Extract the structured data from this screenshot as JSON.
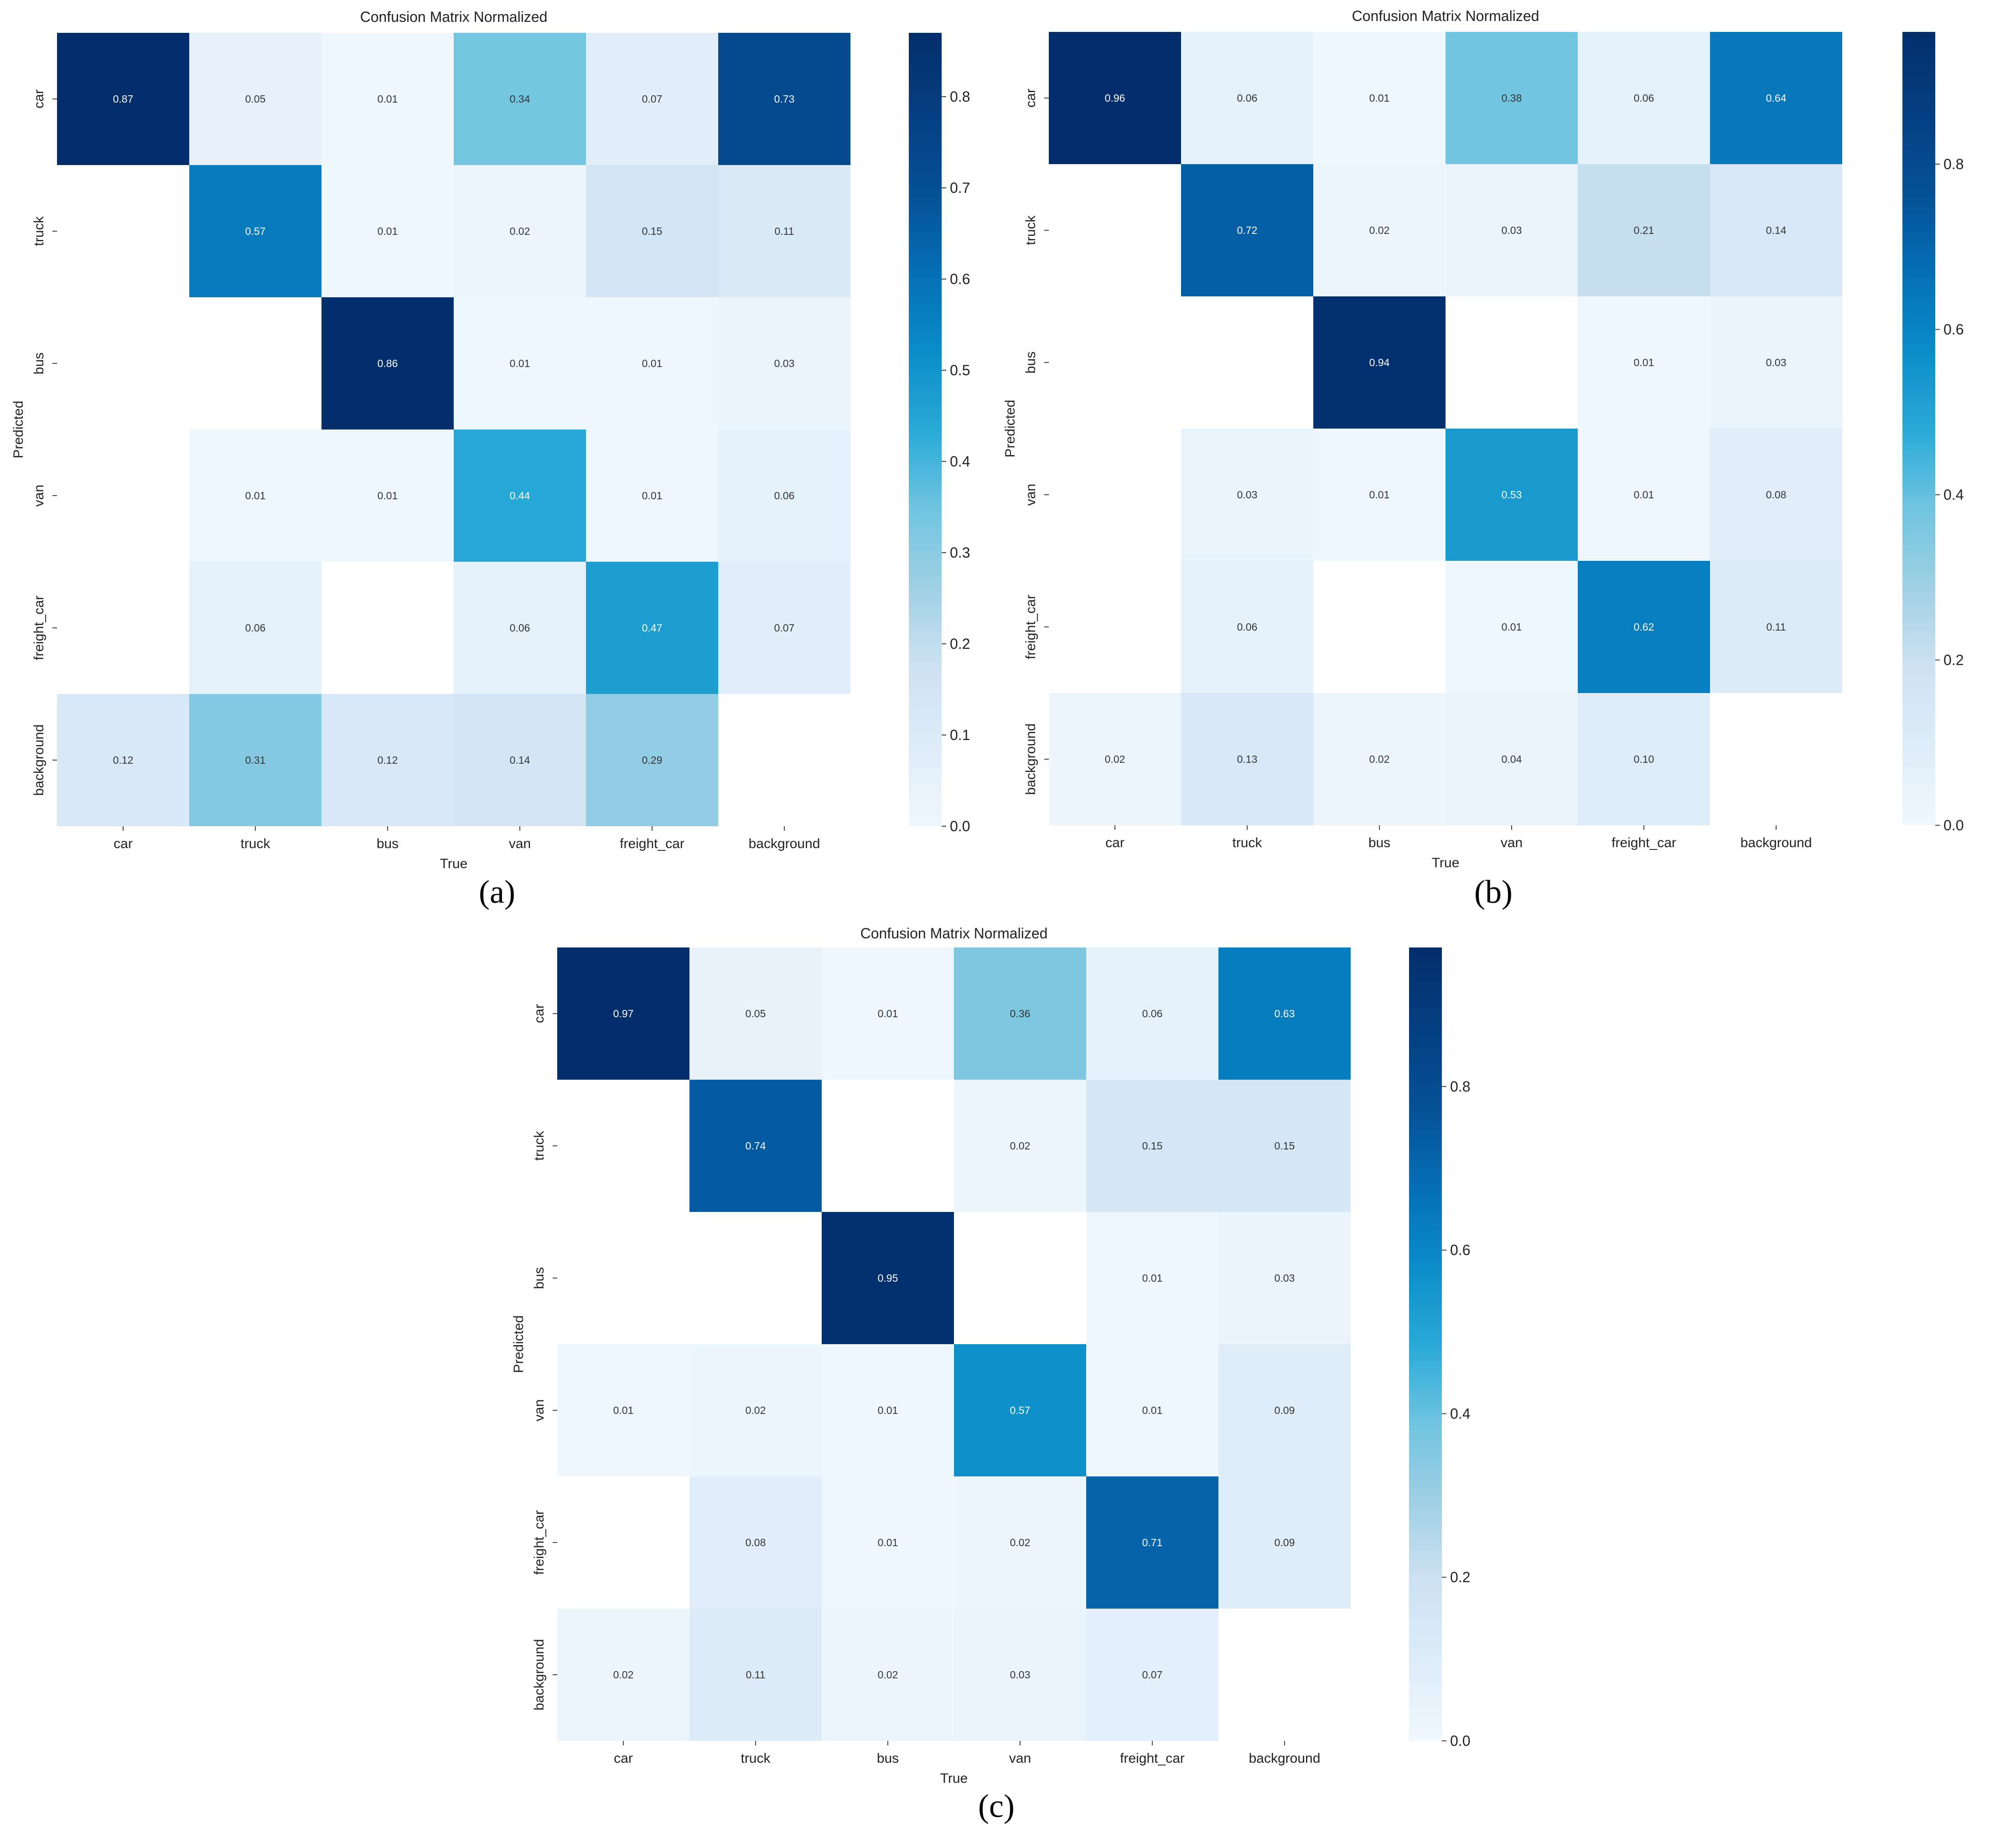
{
  "chart_data": [
    {
      "type": "heatmap",
      "panel_label": "(a)",
      "title": "Confusion Matrix Normalized",
      "xlabel": "True",
      "ylabel": "Predicted",
      "x_categories": [
        "car",
        "truck",
        "bus",
        "van",
        "freight_car",
        "background"
      ],
      "y_categories": [
        "car",
        "truck",
        "bus",
        "van",
        "freight_car",
        "background"
      ],
      "values": [
        [
          0.87,
          0.05,
          0.01,
          0.34,
          0.07,
          0.73
        ],
        [
          null,
          0.57,
          0.01,
          0.02,
          0.15,
          0.11
        ],
        [
          null,
          null,
          0.86,
          0.01,
          0.01,
          0.03
        ],
        [
          null,
          0.01,
          0.01,
          0.44,
          0.01,
          0.06
        ],
        [
          null,
          0.06,
          null,
          0.06,
          0.47,
          0.07
        ],
        [
          0.12,
          0.31,
          0.12,
          0.14,
          0.29,
          null
        ]
      ],
      "colorbar": {
        "min": 0.0,
        "max": 0.87,
        "ticks": [
          0.0,
          0.1,
          0.2,
          0.3,
          0.4,
          0.5,
          0.6,
          0.7,
          0.8
        ],
        "tick_labels": [
          "0.0",
          "0.1",
          "0.2",
          "0.3",
          "0.4",
          "0.5",
          "0.6",
          "0.7",
          "0.8"
        ]
      },
      "colormap": "Blues"
    },
    {
      "type": "heatmap",
      "panel_label": "(b)",
      "title": "Confusion Matrix Normalized",
      "xlabel": "True",
      "ylabel": "Predicted",
      "x_categories": [
        "car",
        "truck",
        "bus",
        "van",
        "freight_car",
        "background"
      ],
      "y_categories": [
        "car",
        "truck",
        "bus",
        "van",
        "freight_car",
        "background"
      ],
      "values": [
        [
          0.96,
          0.06,
          0.01,
          0.38,
          0.06,
          0.64
        ],
        [
          null,
          0.72,
          0.02,
          0.03,
          0.21,
          0.14
        ],
        [
          null,
          null,
          0.94,
          null,
          0.01,
          0.03
        ],
        [
          null,
          0.03,
          0.01,
          0.53,
          0.01,
          0.08
        ],
        [
          null,
          0.06,
          null,
          0.01,
          0.62,
          0.11
        ],
        [
          0.02,
          0.13,
          0.02,
          0.04,
          0.1,
          null
        ]
      ],
      "colorbar": {
        "min": 0.0,
        "max": 0.96,
        "ticks": [
          0.0,
          0.2,
          0.4,
          0.6,
          0.8
        ],
        "tick_labels": [
          "0.0",
          "0.2",
          "0.4",
          "0.6",
          "0.8"
        ]
      },
      "colormap": "Blues"
    },
    {
      "type": "heatmap",
      "panel_label": "(c)",
      "title": "Confusion Matrix Normalized",
      "xlabel": "True",
      "ylabel": "Predicted",
      "x_categories": [
        "car",
        "truck",
        "bus",
        "van",
        "freight_car",
        "background"
      ],
      "y_categories": [
        "car",
        "truck",
        "bus",
        "van",
        "freight_car",
        "background"
      ],
      "values": [
        [
          0.97,
          0.05,
          0.01,
          0.36,
          0.06,
          0.63
        ],
        [
          null,
          0.74,
          null,
          0.02,
          0.15,
          0.15
        ],
        [
          null,
          null,
          0.95,
          null,
          0.01,
          0.03
        ],
        [
          0.01,
          0.02,
          0.01,
          0.57,
          0.01,
          0.09
        ],
        [
          null,
          0.08,
          0.01,
          0.02,
          0.71,
          0.09
        ],
        [
          0.02,
          0.11,
          0.02,
          0.03,
          0.07,
          null
        ]
      ],
      "colorbar": {
        "min": 0.0,
        "max": 0.97,
        "ticks": [
          0.0,
          0.2,
          0.4,
          0.6,
          0.8
        ],
        "tick_labels": [
          "0.0",
          "0.2",
          "0.4",
          "0.6",
          "0.8"
        ]
      },
      "colormap": "Blues"
    }
  ]
}
